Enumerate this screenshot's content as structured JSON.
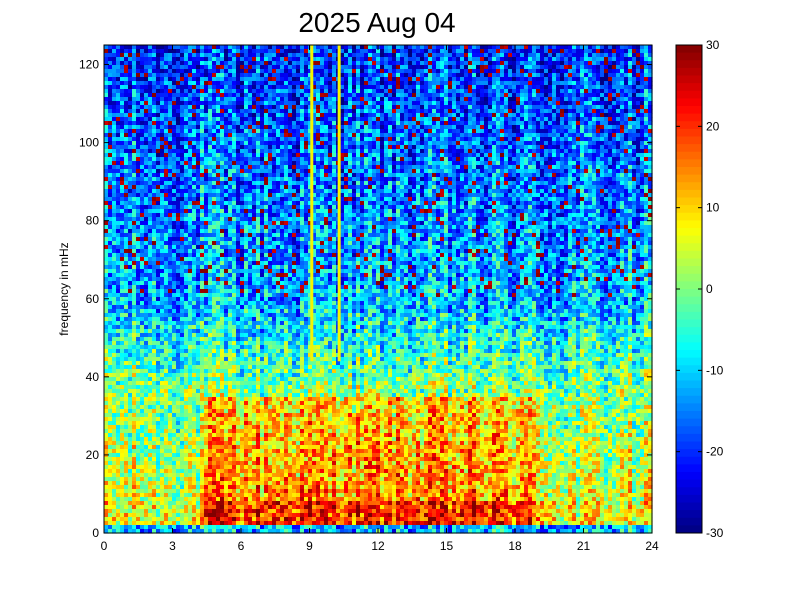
{
  "chart_data": {
    "type": "heatmap",
    "title": "2025 Aug 04",
    "xlabel": "",
    "ylabel": "frequency in mHz",
    "xlim": [
      0,
      24
    ],
    "ylim": [
      0,
      125
    ],
    "x_ticks": [
      "0",
      "3",
      "6",
      "9",
      "12",
      "15",
      "18",
      "21",
      "24"
    ],
    "y_ticks": [
      "0",
      "20",
      "40",
      "60",
      "80",
      "100",
      "120"
    ],
    "colorbar": {
      "range": [
        -30,
        30
      ],
      "ticks": [
        "30",
        "20",
        "10",
        "0",
        "-10",
        "-20",
        "-30"
      ],
      "colormap": "jet"
    },
    "vertical_lines": [
      {
        "x": 9.1,
        "color": "#f5f500"
      },
      {
        "x": 10.3,
        "color": "#f5f500"
      }
    ],
    "colors": {
      "low": "#00008f",
      "mid": "#80ff80",
      "high": "#800000"
    },
    "grid": false
  }
}
